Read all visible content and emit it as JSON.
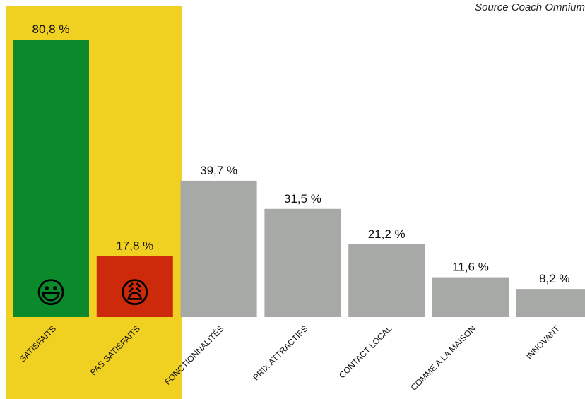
{
  "source_note": "Source Coach Omnium",
  "chart_data": {
    "type": "bar",
    "categories": [
      "SATISFAITS",
      "PAS SATISFAITS",
      "FONCTIONNALITÉS",
      "PRIX ATTRACTIFS",
      "CONTACT LOCAL",
      "COMME A LA MAISON",
      "INNOVANT"
    ],
    "values": [
      80.8,
      17.8,
      39.7,
      31.5,
      21.2,
      11.6,
      8.2
    ],
    "value_labels": [
      "80,8 %",
      "17,8 %",
      "39,7 %",
      "31,5 %",
      "21,2 %",
      "11,6 %",
      "8,2 %"
    ],
    "colors": [
      "#0a8a2a",
      "#cc2a0a",
      "#a6a9a5",
      "#a6a9a5",
      "#a6a9a5",
      "#a6a9a5",
      "#a6a9a5"
    ],
    "emoji": [
      "😃",
      "😩",
      "",
      "",
      "",
      "",
      ""
    ],
    "highlight_background": "#f0d020",
    "highlighted_categories": [
      "SATISFAITS",
      "PAS SATISFAITS"
    ],
    "ylim": [
      0,
      100
    ],
    "grid": false,
    "legend": "none"
  }
}
